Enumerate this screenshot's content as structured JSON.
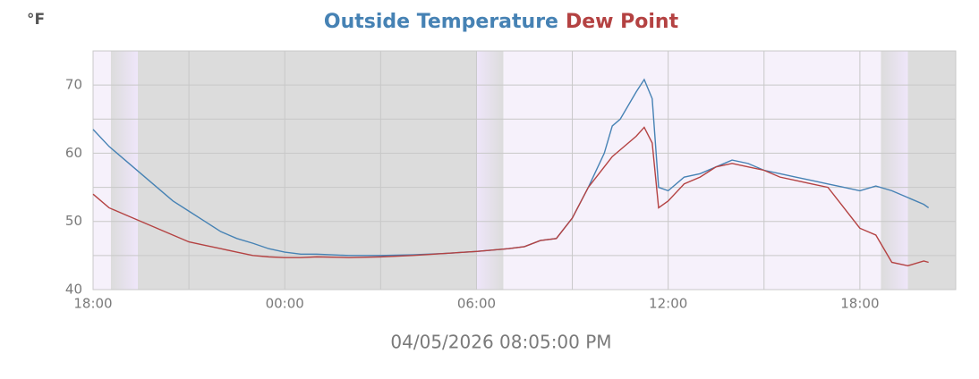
{
  "chart_data": {
    "type": "line",
    "title": "Outside Temperature",
    "title2": "Dew Point",
    "y_unit": "°F",
    "x_caption": "04/05/2026 08:05:00 PM",
    "x": [
      0,
      0.5,
      1,
      1.5,
      2,
      2.5,
      3,
      3.5,
      4,
      4.5,
      5,
      5.5,
      6,
      6.5,
      7,
      8,
      9,
      10,
      11,
      12,
      13,
      13.5,
      14,
      14.5,
      15,
      15.5,
      16,
      16.25,
      16.5,
      17,
      17.25,
      17.5,
      17.7,
      18,
      18.5,
      19,
      19.5,
      20,
      20.5,
      21,
      21.5,
      22,
      22.5,
      23,
      23.5,
      24,
      24.5,
      25,
      25.5,
      26,
      26.15
    ],
    "series": [
      {
        "name": "Outside Temperature",
        "color": "#4682b4",
        "values": [
          63.5,
          61,
          59,
          57,
          55,
          53,
          51.5,
          50,
          48.5,
          47.5,
          46.8,
          46,
          45.5,
          45.2,
          45.2,
          45,
          45,
          45.1,
          45.3,
          45.6,
          46,
          46.3,
          47.2,
          47.5,
          50.5,
          55,
          60,
          64,
          65,
          69,
          70.8,
          68,
          55,
          54.5,
          56.5,
          57,
          58,
          59,
          58.5,
          57.5,
          57,
          56.5,
          56,
          55.5,
          55,
          54.5,
          55.2,
          54.5,
          53.5,
          52.5,
          52
        ]
      },
      {
        "name": "Dew Point",
        "color": "#b44242",
        "values": [
          54,
          52,
          51,
          50,
          49,
          48,
          47,
          46.5,
          46,
          45.5,
          45,
          44.8,
          44.7,
          44.7,
          44.8,
          44.7,
          44.8,
          45,
          45.3,
          45.6,
          46,
          46.3,
          47.2,
          47.5,
          50.5,
          55,
          58,
          59.5,
          60.5,
          62.5,
          63.8,
          61.5,
          52,
          53,
          55.5,
          56.5,
          58,
          58.5,
          58,
          57.5,
          56.5,
          56,
          55.5,
          55,
          52,
          49,
          48,
          44,
          43.5,
          44.2,
          44
        ]
      }
    ],
    "xlim": [
      0,
      27
    ],
    "xticks": [
      {
        "value": 0,
        "label": "18:00"
      },
      {
        "value": 6,
        "label": "00:00"
      },
      {
        "value": 12,
        "label": "06:00"
      },
      {
        "value": 18,
        "label": "12:00"
      },
      {
        "value": 24,
        "label": "18:00"
      }
    ],
    "x_minor_ticks": [
      3,
      9,
      15,
      21
    ],
    "ylim": [
      40,
      75
    ],
    "yticks": [
      40,
      50,
      60,
      70
    ],
    "y_minor_ticks": [
      45,
      55,
      65
    ],
    "grid": true,
    "night": [
      [
        1.4,
        12
      ],
      [
        25.5,
        27
      ]
    ],
    "day_color": "#f6f1fb",
    "night_color": "#dcdcdc"
  }
}
